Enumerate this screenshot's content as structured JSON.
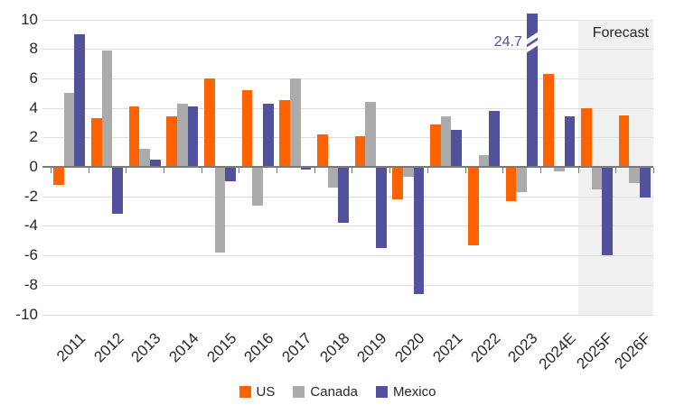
{
  "chart_data": {
    "type": "bar",
    "title": "",
    "categories": [
      "2011",
      "2012",
      "2013",
      "2014",
      "2015",
      "2016",
      "2017",
      "2018",
      "2019",
      "2020",
      "2021",
      "2022",
      "2023",
      "2024E",
      "2025F",
      "2026F"
    ],
    "series": [
      {
        "name": "US",
        "color": "#ff6200",
        "values": [
          -1.2,
          3.3,
          4.1,
          3.4,
          6.0,
          5.2,
          4.5,
          2.2,
          2.1,
          -2.2,
          2.9,
          -5.3,
          -2.3,
          6.3,
          4.0,
          3.5
        ]
      },
      {
        "name": "Canada",
        "color": "#ababab",
        "values": [
          5.0,
          7.9,
          1.2,
          4.3,
          -5.8,
          -2.6,
          6.0,
          -1.4,
          4.4,
          -0.7,
          3.4,
          0.8,
          -1.7,
          -0.3,
          -1.5,
          -1.1
        ]
      },
      {
        "name": "Mexico",
        "color": "#52519b",
        "values": [
          9.0,
          -3.2,
          0.5,
          4.1,
          -1.0,
          4.3,
          -0.2,
          -3.8,
          -5.5,
          -8.6,
          2.5,
          3.8,
          24.7,
          3.4,
          -6.0,
          -2.1
        ]
      }
    ],
    "ylim": [
      -10,
      10
    ],
    "y_ticks": [
      10,
      8,
      6,
      4,
      2,
      0,
      -2,
      -4,
      -6,
      -8,
      -10
    ],
    "grid": "horizontal",
    "legend_position": "bottom",
    "clipped_bar": {
      "series": "Mexico",
      "category": "2023",
      "true_value": 24.7
    },
    "annotation": {
      "text": "24.7",
      "color": "#52519b"
    },
    "forecast_band": {
      "label": "Forecast",
      "categories": [
        "2025F",
        "2026F"
      ],
      "color": "#f0f0f0"
    },
    "colors": {
      "gridline": "#e0e0e0",
      "axis_line": "#7a7a7a",
      "text": "#262626"
    }
  }
}
